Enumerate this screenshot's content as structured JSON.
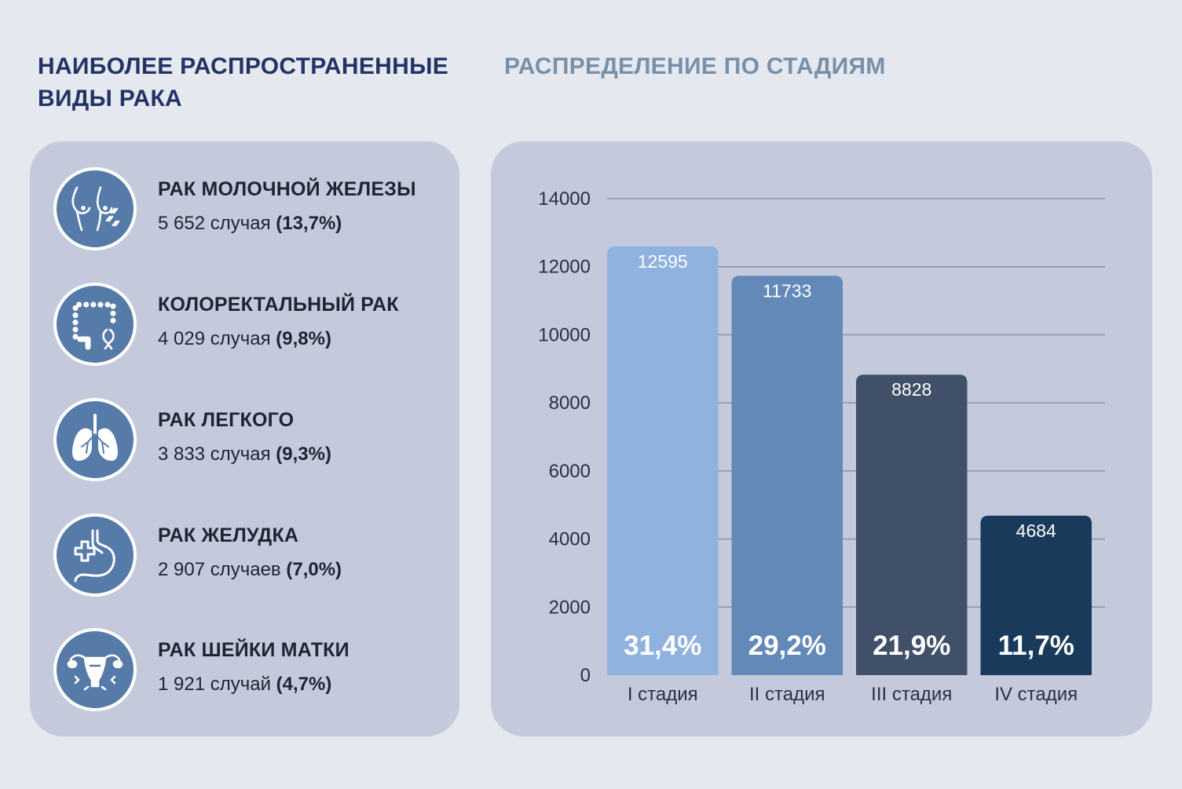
{
  "left_heading": "НАИБОЛЕЕ РАСПРОСТРАНЕННЫЕ ВИДЫ РАКА",
  "right_heading": "РАСПРЕДЕЛЕНИЕ ПО СТАДИЯМ",
  "cancer_types": [
    {
      "icon": "breast-icon",
      "name": "РАК МОЛОЧНОЙ ЖЕЛЕЗЫ",
      "cases": "5 652 случая",
      "share": "(13,7%)"
    },
    {
      "icon": "colon-icon",
      "name": "КОЛОРЕКТАЛЬНЫЙ РАК",
      "cases": "4 029 случая",
      "share": "(9,8%)"
    },
    {
      "icon": "lungs-icon",
      "name": "РАК ЛЕГКОГО",
      "cases": "3 833 случая",
      "share": "(9,3%)"
    },
    {
      "icon": "stomach-icon",
      "name": "РАК ЖЕЛУДКА",
      "cases": "2 907 случаев",
      "share": "(7,0%)"
    },
    {
      "icon": "uterus-icon",
      "name": "РАК ШЕЙКИ МАТКИ",
      "cases": "1 921 случай",
      "share": "(4,7%)"
    }
  ],
  "colors": {
    "heading_left": "#223366",
    "heading_right": "#7890aa",
    "panel": "#c4cadb",
    "icon_circle": "#567ba8",
    "bars": [
      "#8fb2de",
      "#6389b9",
      "#3f5068",
      "#1a3a5c"
    ]
  },
  "chart_data": {
    "type": "bar",
    "categories": [
      "I стадия",
      "II стадия",
      "III стадия",
      "IV стадия"
    ],
    "values": [
      12595,
      11733,
      8828,
      4684
    ],
    "value_labels": [
      "12595",
      "11733",
      "8828",
      "4684"
    ],
    "percent_labels": [
      "31,4%",
      "29,2%",
      "21,9%",
      "11,7%"
    ],
    "ylim": [
      0,
      14000
    ],
    "yticks": [
      0,
      2000,
      4000,
      6000,
      8000,
      10000,
      12000,
      14000
    ],
    "ytick_labels": [
      "0",
      "2000",
      "4000",
      "6000",
      "8000",
      "10000",
      "12000",
      "14000"
    ],
    "grid": true,
    "title": "",
    "xlabel": "",
    "ylabel": ""
  }
}
